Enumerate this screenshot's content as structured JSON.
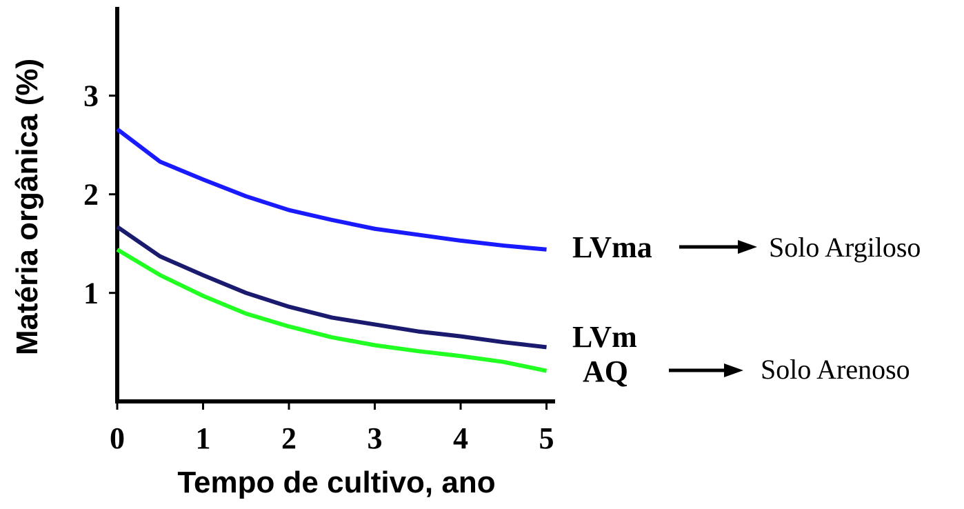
{
  "chart_data": {
    "type": "line",
    "x_label": "Tempo de cultivo, ano",
    "y_label": "Matéria orgânica (%)",
    "x": [
      0,
      0.5,
      1,
      1.5,
      2,
      2.5,
      3,
      3.5,
      4,
      4.5,
      5
    ],
    "series": [
      {
        "name": "LVma",
        "color": "#1a1aff",
        "values": [
          2.66,
          2.33,
          2.15,
          1.98,
          1.84,
          1.74,
          1.65,
          1.59,
          1.53,
          1.48,
          1.44
        ]
      },
      {
        "name": "LVm",
        "color": "#1a1a6e",
        "values": [
          1.67,
          1.37,
          1.18,
          1.0,
          0.86,
          0.75,
          0.68,
          0.61,
          0.56,
          0.5,
          0.45
        ]
      },
      {
        "name": "AQ",
        "color": "#22ff22",
        "values": [
          1.44,
          1.18,
          0.97,
          0.79,
          0.66,
          0.55,
          0.47,
          0.41,
          0.36,
          0.3,
          0.21
        ]
      }
    ],
    "annotations": [
      "Solo Argiloso",
      "Solo Arenoso"
    ],
    "xlim": [
      0,
      5.1
    ],
    "ylim": [
      -0.1,
      3.9
    ],
    "xticks": [
      0,
      1,
      2,
      3,
      4,
      5
    ],
    "yticks": [
      1,
      2,
      3
    ]
  }
}
